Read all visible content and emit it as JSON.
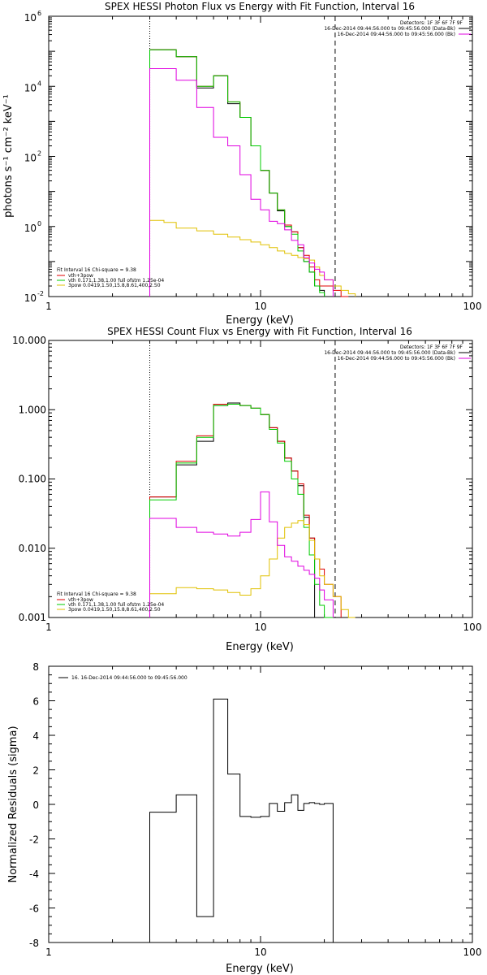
{
  "chart_data": [
    {
      "type": "line",
      "title": "SPEX HESSI Photon Flux vs Energy with Fit Function, Interval 16",
      "xlabel": "Energy (keV)",
      "ylabel": "photons s⁻¹ cm⁻² keV⁻¹",
      "xscale": "log",
      "yscale": "log",
      "xlim": [
        1,
        100
      ],
      "ylim": [
        0.01,
        1000000
      ],
      "x_tick_labels": [
        "1",
        "10",
        "100"
      ],
      "y_tick_labels": [
        {
          "value": 0.01,
          "base": "10",
          "exp": "-2"
        },
        {
          "value": 1,
          "base": "10",
          "exp": "0"
        },
        {
          "value": 100,
          "base": "10",
          "exp": "2"
        },
        {
          "value": 10000,
          "base": "10",
          "exp": "4"
        },
        {
          "value": 1000000,
          "base": "10",
          "exp": "6"
        }
      ],
      "vlines": [
        {
          "x": 3.0,
          "style": "dotted"
        },
        {
          "x": 22.5,
          "style": "dashed"
        }
      ],
      "header_lines": [
        "Detectors: 1F 3F 6F 7F 9F",
        "16-Dec-2014 09:44:56.000 to 09:45:56.000 (Data-Bk)",
        "16-Dec-2014 09:44:56.000 to 09:45:56.000 (Bk)"
      ],
      "legend_lines": [
        "Fit Interval 16   Chi-square = 9.38",
        "vth+3pow",
        "vth 0.171,1.38,1.00  full ofstm 1.25e-04",
        "3pow 0.0419,1.50,15.8,8.61,400,2.50"
      ],
      "colors": {
        "data": "#000000",
        "vth_3pow": "#e00000",
        "vth": "#00cc00",
        "pow": "#e0c000",
        "bk": "#e000e0"
      },
      "bin_edges": [
        3.0,
        3.5,
        4.0,
        5.0,
        6.0,
        7.0,
        8.0,
        9.0,
        10.0,
        11.0,
        12.0,
        13.0,
        14.0,
        15.0,
        16.0,
        17.0,
        18.0,
        19.0,
        20.0,
        22.0,
        24.0,
        26.0,
        28.0
      ],
      "series": [
        {
          "name": "Data-Bk",
          "color": "#000000",
          "values": [
            110000,
            110000,
            70000,
            9000,
            20000,
            3200,
            1300,
            200,
            40,
            9,
            2.8,
            1.0,
            0.7,
            0.25,
            0.1,
            0.05,
            0.02,
            0.015,
            0.01,
            null,
            null,
            null
          ]
        },
        {
          "name": "vth+3pow",
          "color": "#e00000",
          "values": [
            110000,
            110000,
            70000,
            10000,
            20000,
            3600,
            1300,
            200,
            40,
            9,
            3,
            1.1,
            0.7,
            0.25,
            0.15,
            0.07,
            0.03,
            0.02,
            0.02,
            0.015,
            0.01,
            null
          ]
        },
        {
          "name": "vth",
          "color": "#00cc00",
          "values": [
            110000,
            110000,
            70000,
            10000,
            20000,
            3600,
            1300,
            200,
            40,
            9,
            3,
            1.0,
            0.6,
            0.2,
            0.1,
            0.05,
            0.02,
            0.013,
            null,
            null,
            null,
            null
          ]
        },
        {
          "name": "3pow",
          "color": "#e0c000",
          "values": [
            1.5,
            1.3,
            0.9,
            0.75,
            0.6,
            0.5,
            0.42,
            0.36,
            0.3,
            0.25,
            0.2,
            0.17,
            0.15,
            0.13,
            0.12,
            0.11,
            0.07,
            0.04,
            0.03,
            0.02,
            0.015,
            0.012
          ]
        },
        {
          "name": "Bk",
          "color": "#e000e0",
          "values": [
            32000,
            32000,
            15000,
            2500,
            350,
            200,
            30,
            6,
            3,
            1.4,
            1.2,
            0.8,
            0.4,
            0.3,
            0.13,
            0.09,
            0.06,
            0.05,
            0.03,
            null,
            null,
            null
          ]
        }
      ]
    },
    {
      "type": "line",
      "title": "SPEX HESSI Count Flux vs Energy with Fit Function, Interval 16",
      "xlabel": "Energy (keV)",
      "ylabel": "",
      "xscale": "log",
      "yscale": "log",
      "xlim": [
        1,
        100
      ],
      "ylim": [
        0.001,
        10
      ],
      "x_tick_labels": [
        "1",
        "10",
        "100"
      ],
      "y_tick_labels": [
        {
          "value": 0.001,
          "text": "0.001"
        },
        {
          "value": 0.01,
          "text": "0.010"
        },
        {
          "value": 0.1,
          "text": "0.100"
        },
        {
          "value": 1,
          "text": "1.000"
        },
        {
          "value": 10,
          "text": "10.000"
        }
      ],
      "vlines": [
        {
          "x": 3.0,
          "style": "dotted"
        },
        {
          "x": 22.5,
          "style": "dashed"
        }
      ],
      "header_lines": [
        "Detectors: 1F 3F 6F 7F 9F",
        "16-Dec-2014 09:44:56.000 to 09:45:56.000 (Data-Bk)",
        "16-Dec-2014 09:44:56.000 to 09:45:56.000 (Bk)"
      ],
      "legend_lines": [
        "Fit Interval 16   Chi-square = 9.38",
        "vth+3pow",
        "vth 0.171,1.38,1.00  full ofstm 1.25e-04",
        "3pow 0.0419,1.50,15.8,8.61,400,2.50"
      ],
      "colors": {
        "data": "#000000",
        "vth_3pow": "#e00000",
        "vth": "#00cc00",
        "pow": "#e0c000",
        "bk": "#e000e0"
      },
      "bin_edges": [
        3.0,
        4.0,
        5.0,
        6.0,
        7.0,
        8.0,
        9.0,
        10.0,
        11.0,
        12.0,
        13.0,
        14.0,
        15.0,
        16.0,
        17.0,
        18.0,
        19.0,
        20.0,
        22.0,
        24.0,
        26.0,
        28.0
      ],
      "series": [
        {
          "name": "Data-Bk",
          "color": "#000000",
          "values": [
            0.055,
            0.16,
            0.35,
            1.15,
            1.25,
            1.15,
            1.05,
            0.85,
            0.55,
            0.35,
            0.2,
            0.13,
            0.08,
            0.028,
            0.014,
            null,
            null,
            null,
            null,
            null,
            null
          ]
        },
        {
          "name": "vth+3pow",
          "color": "#e00000",
          "values": [
            0.055,
            0.18,
            0.42,
            1.2,
            1.2,
            1.15,
            1.05,
            0.85,
            0.55,
            0.35,
            0.2,
            0.13,
            0.085,
            0.03,
            0.014,
            0.007,
            0.005,
            0.003,
            0.002,
            null,
            null
          ]
        },
        {
          "name": "vth",
          "color": "#00cc00",
          "values": [
            0.05,
            0.17,
            0.4,
            1.15,
            1.2,
            1.15,
            1.05,
            0.85,
            0.52,
            0.33,
            0.18,
            0.1,
            0.06,
            0.02,
            0.008,
            0.003,
            0.0015,
            0.001,
            null,
            null,
            null
          ]
        },
        {
          "name": "3pow",
          "color": "#e0c000",
          "values": [
            0.0022,
            0.0027,
            0.0026,
            0.0025,
            0.0023,
            0.0021,
            0.0026,
            0.004,
            0.007,
            0.014,
            0.02,
            0.023,
            0.025,
            0.022,
            0.013,
            0.007,
            0.004,
            0.003,
            0.002,
            0.0013,
            0.001
          ]
        },
        {
          "name": "Bk",
          "color": "#e000e0",
          "values": [
            0.027,
            0.02,
            0.017,
            0.016,
            0.015,
            0.017,
            0.026,
            0.065,
            0.024,
            0.011,
            0.0075,
            0.0065,
            0.0055,
            0.0048,
            0.0042,
            0.0037,
            0.0025,
            0.0018,
            null,
            null,
            null
          ]
        }
      ]
    },
    {
      "type": "line",
      "title": "",
      "xlabel": "Energy (keV)",
      "ylabel": "Normalized Residuals (sigma)",
      "xscale": "log",
      "yscale": "linear",
      "xlim": [
        1,
        100
      ],
      "ylim": [
        -8,
        8
      ],
      "x_tick_labels": [
        "1",
        "10",
        "100"
      ],
      "y_tick_labels": [
        "-8",
        "-6",
        "-4",
        "-2",
        "0",
        "2",
        "4",
        "6",
        "8"
      ],
      "legend_lines": [
        "16. 16-Dec-2014 09:44:56.000 to 09:45:56.000"
      ],
      "bin_edges": [
        3.0,
        4.0,
        5.0,
        6.0,
        7.0,
        8.0,
        9.0,
        10.0,
        11.0,
        12.0,
        13.0,
        14.0,
        15.0,
        16.0,
        17.0,
        18.0,
        19.0,
        20.0,
        22.0
      ],
      "series": [
        {
          "name": "16. 16-Dec-2014 09:44:56.000 to 09:45:56.000",
          "color": "#000000",
          "values": [
            -0.45,
            0.55,
            -6.5,
            6.1,
            1.75,
            -0.7,
            -0.75,
            -0.7,
            0.05,
            -0.4,
            0.1,
            0.55,
            -0.35,
            0.05,
            0.1,
            0.05,
            0.0,
            0.05
          ]
        }
      ]
    }
  ]
}
